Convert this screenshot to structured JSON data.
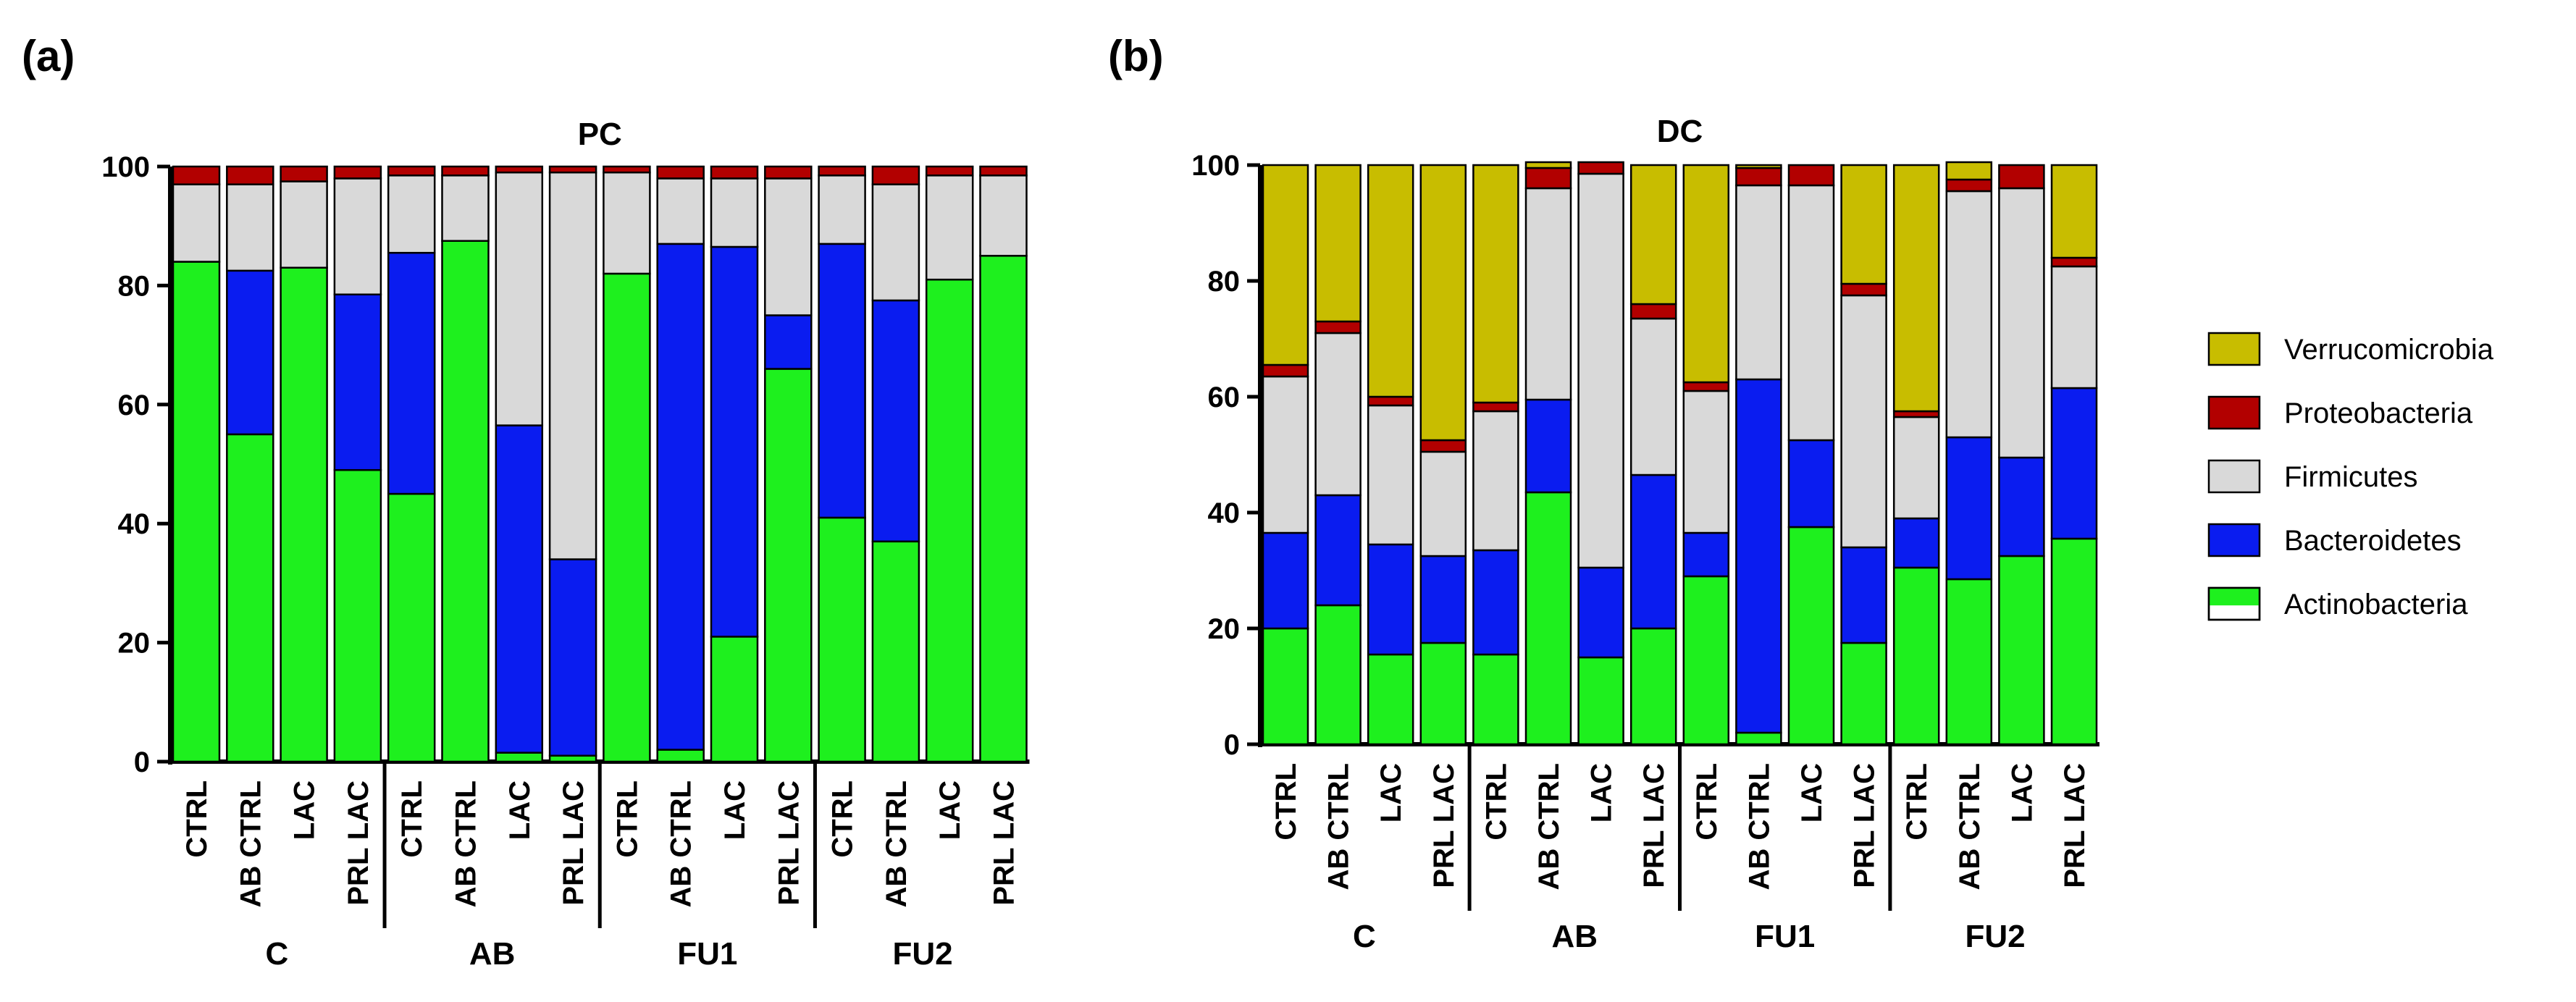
{
  "figure": {
    "panel_a_label": "(a)",
    "panel_b_label": "(b)"
  },
  "colors": {
    "Verrucomicrobia": "#c8bd00",
    "Proteobacteria": "#b20000",
    "Firmicutes": "#d9d9d9",
    "Bacteroidetes": "#0a1cf0",
    "Actinobacteria": "#1ef01e",
    "Actinobacteria_white": "#ffffff"
  },
  "legend": {
    "items": [
      "Verrucomicrobia",
      "Proteobacteria",
      "Firmicutes",
      "Bacteroidetes",
      "Actinobacteria"
    ]
  },
  "chart_data": [
    {
      "type": "bar",
      "stacked": true,
      "title": "PC",
      "ylim": [
        0,
        100
      ],
      "yticks": [
        0,
        20,
        40,
        60,
        80,
        100
      ],
      "groups": [
        {
          "label": "C",
          "categories": [
            "CTRL",
            "AB CTRL",
            "LAC",
            "PRL LAC"
          ]
        },
        {
          "label": "AB",
          "categories": [
            "CTRL",
            "AB CTRL",
            "LAC",
            "PRL LAC"
          ]
        },
        {
          "label": "FU1",
          "categories": [
            "CTRL",
            "AB CTRL",
            "LAC",
            "PRL LAC"
          ]
        },
        {
          "label": "FU2",
          "categories": [
            "CTRL",
            "AB CTRL",
            "LAC",
            "PRL LAC"
          ]
        }
      ],
      "stack_order": [
        "Actinobacteria",
        "Bacteroidetes",
        "Firmicutes",
        "Proteobacteria",
        "Verrucomicrobia"
      ],
      "series": [
        {
          "name": "Actinobacteria",
          "values": [
            84,
            55,
            83,
            49,
            45,
            87.5,
            1.5,
            1,
            82,
            2,
            21,
            66,
            41,
            37,
            81,
            85
          ]
        },
        {
          "name": "Bacteroidetes",
          "values": [
            0,
            27.5,
            0,
            29.5,
            40.5,
            0,
            55,
            33,
            0,
            85,
            65.5,
            9,
            46,
            40.5,
            0,
            0
          ]
        },
        {
          "name": "Firmicutes",
          "values": [
            13,
            14.5,
            14.5,
            19.5,
            13,
            11,
            42.5,
            65,
            17,
            11,
            11.5,
            23,
            11.5,
            19.5,
            17.5,
            13.5
          ]
        },
        {
          "name": "Proteobacteria",
          "values": [
            3,
            3,
            2.5,
            2,
            1.5,
            1.5,
            1,
            1,
            1,
            2,
            2,
            2,
            1.5,
            3,
            1.5,
            1.5
          ]
        },
        {
          "name": "Verrucomicrobia",
          "values": [
            0,
            0,
            0,
            0,
            0,
            0,
            0,
            0,
            0,
            0,
            0,
            0,
            0,
            0,
            0,
            0
          ]
        }
      ]
    },
    {
      "type": "bar",
      "stacked": true,
      "title": "DC",
      "ylim": [
        0,
        100
      ],
      "yticks": [
        0,
        20,
        40,
        60,
        80,
        100
      ],
      "groups": [
        {
          "label": "C",
          "categories": [
            "CTRL",
            "AB CTRL",
            "LAC",
            "PRL LAC"
          ]
        },
        {
          "label": "AB",
          "categories": [
            "CTRL",
            "AB CTRL",
            "LAC",
            "PRL LAC"
          ]
        },
        {
          "label": "FU1",
          "categories": [
            "CTRL",
            "AB CTRL",
            "LAC",
            "PRL LAC"
          ]
        },
        {
          "label": "FU2",
          "categories": [
            "CTRL",
            "AB CTRL",
            "LAC",
            "PRL LAC"
          ]
        }
      ],
      "stack_order": [
        "Actinobacteria",
        "Bacteroidetes",
        "Firmicutes",
        "Proteobacteria",
        "Verrucomicrobia"
      ],
      "series": [
        {
          "name": "Actinobacteria",
          "values": [
            20,
            24,
            15.5,
            17.5,
            15.5,
            43.5,
            15,
            20,
            29,
            2,
            37.5,
            17.5,
            30.5,
            28.5,
            32.5,
            35.5
          ]
        },
        {
          "name": "Bacteroidetes",
          "values": [
            16.5,
            19,
            19,
            15,
            18,
            16,
            15.5,
            26.5,
            7.5,
            61,
            15,
            16.5,
            8.5,
            24.5,
            17,
            26
          ]
        },
        {
          "name": "Firmicutes",
          "values": [
            27,
            28,
            24,
            18,
            24,
            36.5,
            68,
            27,
            24.5,
            33.5,
            44,
            43.5,
            17.5,
            42.5,
            46.5,
            21
          ]
        },
        {
          "name": "Proteobacteria",
          "values": [
            2,
            2,
            1.5,
            2,
            1.5,
            3.5,
            2,
            2.5,
            1.5,
            3,
            3.5,
            2,
            1,
            2,
            4,
            1.5
          ]
        },
        {
          "name": "Verrucomicrobia",
          "values": [
            34.5,
            27,
            40,
            47.5,
            41,
            1,
            0,
            24,
            37.5,
            0.5,
            0,
            20.5,
            42.5,
            3,
            0,
            16
          ]
        }
      ]
    }
  ]
}
